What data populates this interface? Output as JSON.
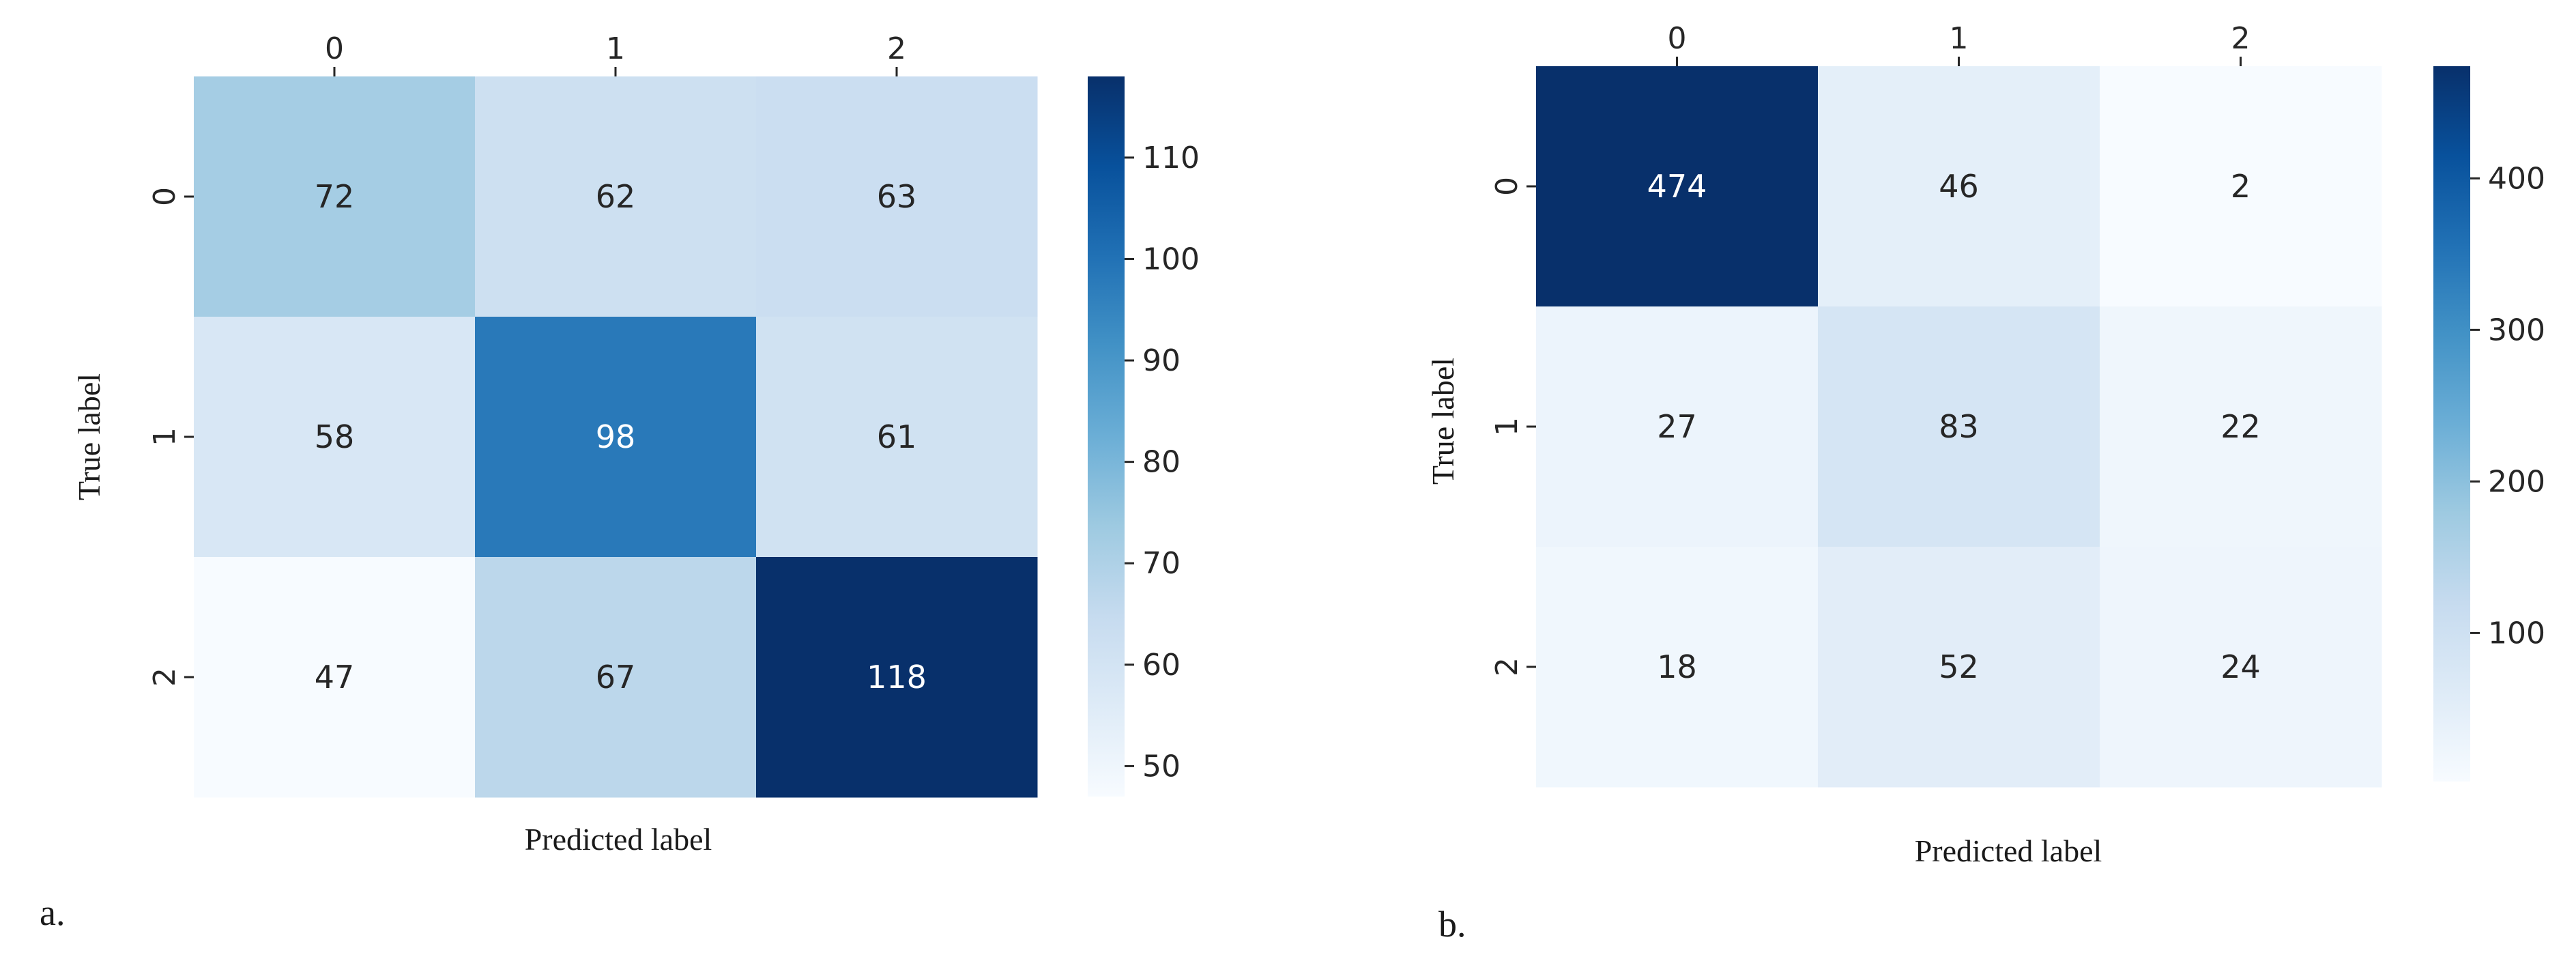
{
  "chart_data": [
    {
      "type": "heatmap",
      "panel_label": "a.",
      "xlabel": "Predicted label",
      "ylabel": "True label",
      "x_tick_labels": [
        "0",
        "1",
        "2"
      ],
      "y_tick_labels": [
        "0",
        "1",
        "2"
      ],
      "matrix": [
        [
          72,
          62,
          63
        ],
        [
          58,
          98,
          61
        ],
        [
          47,
          67,
          118
        ]
      ],
      "colormap": "Blues",
      "colorbar": {
        "min": 47,
        "max": 118,
        "ticks": [
          50,
          60,
          70,
          80,
          90,
          100,
          110
        ]
      }
    },
    {
      "type": "heatmap",
      "panel_label": "b.",
      "xlabel": "Predicted label",
      "ylabel": "True label",
      "x_tick_labels": [
        "0",
        "1",
        "2"
      ],
      "y_tick_labels": [
        "0",
        "1",
        "2"
      ],
      "matrix": [
        [
          474,
          46,
          2
        ],
        [
          27,
          83,
          22
        ],
        [
          18,
          52,
          24
        ]
      ],
      "colormap": "Blues",
      "colorbar": {
        "min": 2,
        "max": 474,
        "ticks": [
          100,
          200,
          300,
          400
        ]
      }
    }
  ]
}
